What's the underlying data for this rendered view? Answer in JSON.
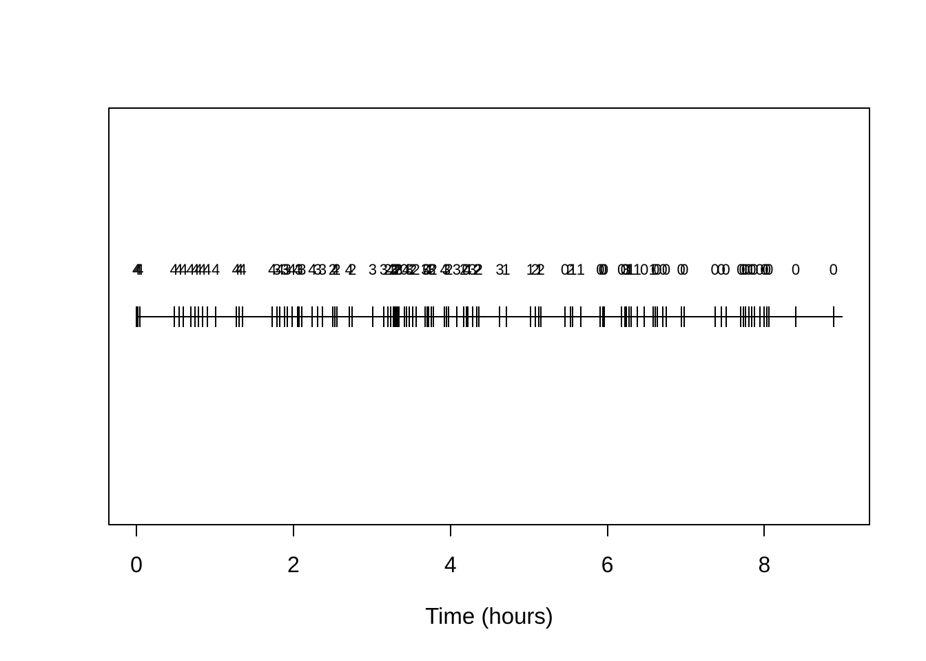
{
  "chart_data": {
    "type": "scatter",
    "subtype": "rug-event-plot",
    "title": "",
    "xlabel": "Time (hours)",
    "ylabel": "",
    "xlim": [
      -0.36,
      9.35
    ],
    "x_ticks": [
      0,
      2,
      4,
      6,
      8
    ],
    "grid": false,
    "legend": "none",
    "rug_line_range": [
      0.0,
      9.0
    ],
    "mark_color": "#000000",
    "background_color": "#ffffff",
    "events": [
      [
        0.0,
        "4"
      ],
      [
        0.02,
        "4"
      ],
      [
        0.04,
        "4"
      ],
      [
        0.48,
        "4"
      ],
      [
        0.54,
        "4"
      ],
      [
        0.6,
        "4"
      ],
      [
        0.69,
        "4"
      ],
      [
        0.75,
        "4"
      ],
      [
        0.79,
        "4"
      ],
      [
        0.84,
        "4"
      ],
      [
        0.9,
        "4"
      ],
      [
        1.01,
        "4"
      ],
      [
        1.27,
        "4"
      ],
      [
        1.31,
        "4"
      ],
      [
        1.35,
        "4"
      ],
      [
        1.73,
        "4"
      ],
      [
        1.79,
        "3"
      ],
      [
        1.83,
        "4"
      ],
      [
        1.89,
        "3"
      ],
      [
        1.92,
        "3"
      ],
      [
        1.98,
        "4"
      ],
      [
        2.05,
        "4"
      ],
      [
        2.07,
        "3"
      ],
      [
        2.11,
        "3"
      ],
      [
        2.24,
        "4"
      ],
      [
        2.31,
        "3"
      ],
      [
        2.37,
        "3"
      ],
      [
        2.5,
        "2"
      ],
      [
        2.53,
        "4"
      ],
      [
        2.55,
        "2"
      ],
      [
        2.71,
        "4"
      ],
      [
        2.75,
        "2"
      ],
      [
        3.01,
        "3"
      ],
      [
        3.15,
        "3"
      ],
      [
        3.2,
        "2"
      ],
      [
        3.24,
        "4"
      ],
      [
        3.27,
        "2"
      ],
      [
        3.29,
        "3"
      ],
      [
        3.31,
        "2"
      ],
      [
        3.33,
        "2"
      ],
      [
        3.34,
        "3"
      ],
      [
        3.41,
        "0"
      ],
      [
        3.44,
        "4"
      ],
      [
        3.48,
        "3"
      ],
      [
        3.52,
        "2"
      ],
      [
        3.56,
        "2"
      ],
      [
        3.68,
        "3"
      ],
      [
        3.7,
        "0"
      ],
      [
        3.72,
        "4"
      ],
      [
        3.76,
        "3"
      ],
      [
        3.78,
        "2"
      ],
      [
        3.92,
        "4"
      ],
      [
        3.95,
        "3"
      ],
      [
        3.98,
        "2"
      ],
      [
        4.08,
        "3"
      ],
      [
        4.17,
        "2"
      ],
      [
        4.2,
        "0"
      ],
      [
        4.22,
        "4"
      ],
      [
        4.28,
        "3"
      ],
      [
        4.34,
        "2"
      ],
      [
        4.36,
        "2"
      ],
      [
        4.63,
        "3"
      ],
      [
        4.71,
        "1"
      ],
      [
        5.02,
        "1"
      ],
      [
        5.08,
        "2"
      ],
      [
        5.13,
        "1"
      ],
      [
        5.15,
        "2"
      ],
      [
        5.46,
        "0"
      ],
      [
        5.53,
        "2"
      ],
      [
        5.56,
        "1"
      ],
      [
        5.66,
        "1"
      ],
      [
        5.91,
        "0"
      ],
      [
        5.94,
        "0"
      ],
      [
        5.96,
        "0"
      ],
      [
        6.18,
        "0"
      ],
      [
        6.22,
        "0"
      ],
      [
        6.24,
        "3"
      ],
      [
        6.28,
        "1"
      ],
      [
        6.3,
        "1"
      ],
      [
        6.38,
        "1"
      ],
      [
        6.47,
        "0"
      ],
      [
        6.58,
        "1"
      ],
      [
        6.61,
        "0"
      ],
      [
        6.64,
        "0"
      ],
      [
        6.71,
        "0"
      ],
      [
        6.75,
        "0"
      ],
      [
        6.94,
        "0"
      ],
      [
        6.98,
        "0"
      ],
      [
        7.37,
        "0"
      ],
      [
        7.45,
        "0"
      ],
      [
        7.51,
        "0"
      ],
      [
        7.7,
        "0"
      ],
      [
        7.73,
        "0"
      ],
      [
        7.76,
        "0"
      ],
      [
        7.8,
        "0"
      ],
      [
        7.84,
        "0"
      ],
      [
        7.87,
        "0"
      ],
      [
        7.94,
        "0"
      ],
      [
        8.0,
        "0"
      ],
      [
        8.03,
        "0"
      ],
      [
        8.06,
        "0"
      ],
      [
        8.4,
        "0"
      ],
      [
        8.88,
        "0"
      ]
    ]
  }
}
